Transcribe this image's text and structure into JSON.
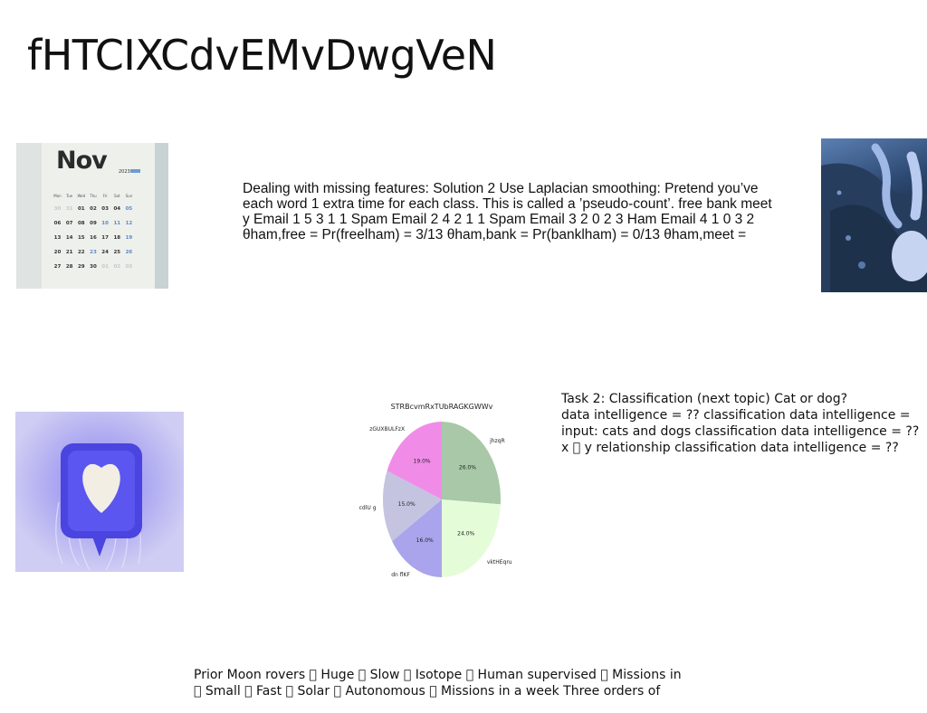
{
  "slide": {
    "title": "fHTCIXCdvEMvDwgVeN",
    "paragraph1": [
      "Dealing with missing features: Solution 2 Use Laplacian smoothing: Pretend you’ve",
      "each word 1 extra time for each class. This is called a ’pseudo-count’. free bank meet",
      "y Email 1 5 3 1 1 Spam Email 2 4 2 1 1 Spam Email 3 2 0 2 3 Ham Email 4 1 0 3 2",
      "θham,free = Pr(freelham) = 3/13 θham,bank = Pr(banklham) = 0/13 θham,meet ="
    ],
    "paragraph2": [
      "Task 2: Classification (next topic) Cat or dog?",
      "data intelligence = ?? classification data intelligence =",
      "input: cats and dogs classification data intelligence = ??",
      "x \u0000 y relationship classification data intelligence = ??"
    ],
    "paragraph3": [
      "Prior Moon rovers \u0000 Huge \u0000 Slow \u0000 Isotope \u0000 Human supervised \u0000 Missions in",
      "\u0000 Small \u0000 Fast \u0000 Solar \u0000 Autonomous \u0000 Missions in a week Three orders of"
    ],
    "calendar_image": {
      "month": "Nov",
      "year": "2023",
      "weekdays": [
        "Mon",
        "Tue",
        "Wed",
        "Thu",
        "Fri",
        "Sat",
        "Sun"
      ],
      "rows": [
        [
          "30",
          "31",
          "01",
          "02",
          "03",
          "04",
          "05"
        ],
        [
          "06",
          "07",
          "08",
          "09",
          "10",
          "11",
          "12"
        ],
        [
          "13",
          "14",
          "15",
          "16",
          "17",
          "18",
          "19"
        ],
        [
          "20",
          "21",
          "22",
          "23",
          "24",
          "25",
          "26"
        ],
        [
          "27",
          "28",
          "29",
          "30",
          "01",
          "02",
          "03"
        ]
      ]
    }
  },
  "chart_data": {
    "type": "pie",
    "title": "STRBcvmRxTUbRAGKGWWv",
    "slices": [
      {
        "label": "jhzqR",
        "value": 26.0,
        "pct_label": "26.0%",
        "color": "#a8c8a8"
      },
      {
        "label": "vktHEqru",
        "value": 24.0,
        "pct_label": "24.0%",
        "color": "#e4fcd8"
      },
      {
        "label": "dn flKF",
        "value": 16.0,
        "pct_label": "16.0%",
        "color": "#aaa4ec"
      },
      {
        "label": "cdlU g",
        "value": 15.0,
        "pct_label": "15.0%",
        "color": "#c4c4e0"
      },
      {
        "label": "zGUXBULFzX",
        "value": 19.0,
        "pct_label": "19.0%",
        "color": "#f08ce8"
      }
    ],
    "start_angle_deg": 90,
    "direction": "clockwise"
  }
}
